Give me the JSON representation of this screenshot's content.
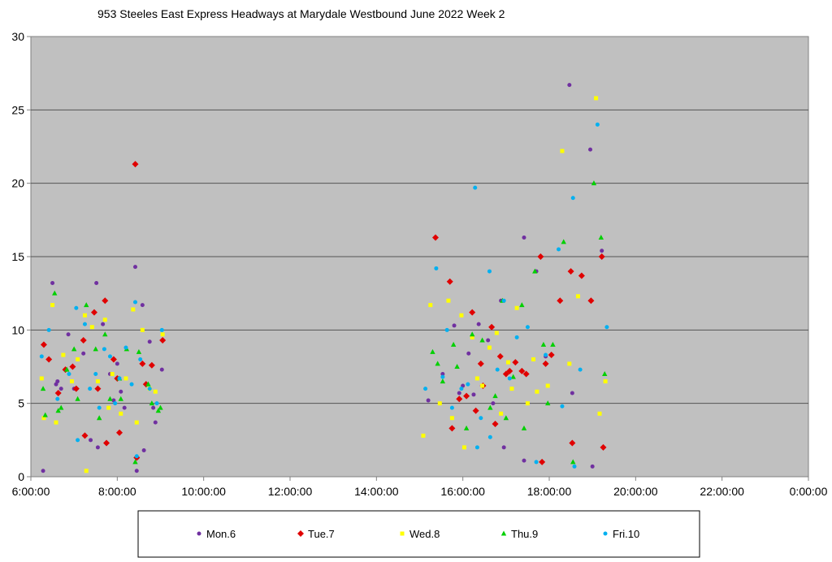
{
  "chart_data": {
    "type": "scatter",
    "title": "953 Steeles East Express Headways at Marydale Westbound June 2022  Week 2",
    "xlabel": "",
    "ylabel": "",
    "xlim": [
      "6:00:00",
      "0:00:00"
    ],
    "ylim": [
      0,
      30
    ],
    "x_ticks": [
      "6:00:00",
      "8:00:00",
      "10:00:00",
      "12:00:00",
      "14:00:00",
      "16:00:00",
      "18:00:00",
      "20:00:00",
      "22:00:00",
      "0:00:00"
    ],
    "y_ticks": [
      "0",
      "5",
      "10",
      "15",
      "20",
      "25",
      "30"
    ],
    "grid": "horizontal",
    "legend_position": "bottom",
    "background": "#c0c0c0",
    "series": [
      {
        "name": "Mon.6",
        "color": "#7030a0",
        "marker": "circle",
        "points": [
          [
            "6:17",
            0.4
          ],
          [
            "6:30",
            13.2
          ],
          [
            "6:35",
            6.3
          ],
          [
            "6:37",
            6.5
          ],
          [
            "6:42",
            6.0
          ],
          [
            "6:52",
            9.7
          ],
          [
            "7:00",
            6.0
          ],
          [
            "7:13",
            8.4
          ],
          [
            "7:23",
            2.5
          ],
          [
            "7:31",
            13.2
          ],
          [
            "7:33",
            2.0
          ],
          [
            "7:40",
            10.4
          ],
          [
            "7:50",
            7.0
          ],
          [
            "7:55",
            5.2
          ],
          [
            "8:00",
            7.7
          ],
          [
            "8:05",
            5.8
          ],
          [
            "8:10",
            4.7
          ],
          [
            "8:25",
            14.3
          ],
          [
            "8:27",
            0.4
          ],
          [
            "8:28",
            1.3
          ],
          [
            "8:35",
            11.7
          ],
          [
            "8:37",
            1.8
          ],
          [
            "8:45",
            9.2
          ],
          [
            "8:50",
            4.7
          ],
          [
            "8:53",
            3.7
          ],
          [
            "9:02",
            7.3
          ],
          [
            "15:12",
            5.2
          ],
          [
            "15:32",
            7.0
          ],
          [
            "15:48",
            10.3
          ],
          [
            "15:55",
            5.7
          ],
          [
            "16:00",
            6.2
          ],
          [
            "16:08",
            8.4
          ],
          [
            "16:15",
            5.6
          ],
          [
            "16:22",
            10.4
          ],
          [
            "16:35",
            9.3
          ],
          [
            "16:42",
            5.0
          ],
          [
            "16:53",
            12.0
          ],
          [
            "16:57",
            2.0
          ],
          [
            "17:25",
            16.3
          ],
          [
            "17:25",
            1.1
          ],
          [
            "17:42",
            14.0
          ],
          [
            "17:55",
            8.2
          ],
          [
            "18:28",
            26.7
          ],
          [
            "18:32",
            5.7
          ],
          [
            "18:57",
            22.3
          ],
          [
            "19:00",
            0.7
          ],
          [
            "19:13",
            15.4
          ]
        ]
      },
      {
        "name": "Tue.7",
        "color": "#e00000",
        "marker": "diamond",
        "points": [
          [
            "6:18",
            9.0
          ],
          [
            "6:25",
            8.0
          ],
          [
            "6:38",
            5.7
          ],
          [
            "6:48",
            7.3
          ],
          [
            "6:58",
            7.5
          ],
          [
            "7:03",
            6.0
          ],
          [
            "7:13",
            9.3
          ],
          [
            "7:15",
            2.8
          ],
          [
            "7:28",
            11.2
          ],
          [
            "7:33",
            6.0
          ],
          [
            "7:43",
            12.0
          ],
          [
            "7:45",
            2.3
          ],
          [
            "7:55",
            8.0
          ],
          [
            "8:00",
            6.7
          ],
          [
            "8:03",
            3.0
          ],
          [
            "8:25",
            21.3
          ],
          [
            "8:27",
            1.3
          ],
          [
            "8:35",
            7.7
          ],
          [
            "8:40",
            6.3
          ],
          [
            "8:48",
            7.6
          ],
          [
            "9:03",
            9.3
          ],
          [
            "15:22",
            16.3
          ],
          [
            "15:42",
            13.3
          ],
          [
            "15:45",
            3.3
          ],
          [
            "15:55",
            5.3
          ],
          [
            "16:05",
            5.5
          ],
          [
            "16:13",
            11.2
          ],
          [
            "16:18",
            4.5
          ],
          [
            "16:25",
            7.7
          ],
          [
            "16:28",
            6.2
          ],
          [
            "16:40",
            10.2
          ],
          [
            "16:45",
            3.6
          ],
          [
            "16:52",
            8.2
          ],
          [
            "17:00",
            7.0
          ],
          [
            "17:05",
            7.2
          ],
          [
            "17:13",
            7.8
          ],
          [
            "17:22",
            7.2
          ],
          [
            "17:28",
            7.0
          ],
          [
            "17:48",
            15.0
          ],
          [
            "17:50",
            1.0
          ],
          [
            "17:55",
            7.7
          ],
          [
            "18:03",
            8.3
          ],
          [
            "18:15",
            12.0
          ],
          [
            "18:30",
            14.0
          ],
          [
            "18:32",
            2.3
          ],
          [
            "18:45",
            13.7
          ],
          [
            "18:58",
            12.0
          ],
          [
            "19:13",
            15.0
          ],
          [
            "19:15",
            2.0
          ]
        ]
      },
      {
        "name": "Wed.8",
        "color": "#ffff00",
        "marker": "square",
        "points": [
          [
            "6:15",
            6.7
          ],
          [
            "6:18",
            4.0
          ],
          [
            "6:30",
            11.7
          ],
          [
            "6:35",
            3.7
          ],
          [
            "6:45",
            8.3
          ],
          [
            "6:57",
            6.5
          ],
          [
            "7:05",
            8.0
          ],
          [
            "7:15",
            11.0
          ],
          [
            "7:17",
            0.4
          ],
          [
            "7:25",
            10.2
          ],
          [
            "7:33",
            6.5
          ],
          [
            "7:43",
            10.7
          ],
          [
            "7:48",
            4.7
          ],
          [
            "7:53",
            7.0
          ],
          [
            "8:05",
            4.3
          ],
          [
            "8:12",
            6.7
          ],
          [
            "8:22",
            11.4
          ],
          [
            "8:27",
            3.7
          ],
          [
            "8:35",
            10.0
          ],
          [
            "8:45",
            6.0
          ],
          [
            "8:53",
            5.8
          ],
          [
            "9:03",
            9.7
          ],
          [
            "15:05",
            2.8
          ],
          [
            "15:15",
            11.7
          ],
          [
            "15:28",
            5.0
          ],
          [
            "15:40",
            12.0
          ],
          [
            "15:45",
            4.0
          ],
          [
            "15:58",
            11.0
          ],
          [
            "16:02",
            2.0
          ],
          [
            "16:13",
            9.5
          ],
          [
            "16:20",
            6.7
          ],
          [
            "16:27",
            6.2
          ],
          [
            "16:37",
            8.8
          ],
          [
            "16:47",
            9.8
          ],
          [
            "16:53",
            4.3
          ],
          [
            "17:03",
            7.8
          ],
          [
            "17:08",
            6.0
          ],
          [
            "17:15",
            11.5
          ],
          [
            "17:30",
            5.0
          ],
          [
            "17:38",
            8.0
          ],
          [
            "17:43",
            5.8
          ],
          [
            "17:58",
            6.2
          ],
          [
            "18:18",
            22.2
          ],
          [
            "18:28",
            7.7
          ],
          [
            "18:40",
            12.3
          ],
          [
            "19:05",
            25.8
          ],
          [
            "19:10",
            4.3
          ],
          [
            "19:18",
            6.5
          ]
        ]
      },
      {
        "name": "Thu.9",
        "color": "#00d000",
        "marker": "triangle",
        "points": [
          [
            "6:17",
            6.0
          ],
          [
            "6:20",
            4.2
          ],
          [
            "6:33",
            12.5
          ],
          [
            "6:38",
            4.5
          ],
          [
            "6:42",
            4.7
          ],
          [
            "6:50",
            7.3
          ],
          [
            "7:00",
            8.7
          ],
          [
            "7:05",
            5.3
          ],
          [
            "7:17",
            11.7
          ],
          [
            "7:30",
            8.7
          ],
          [
            "7:35",
            4.0
          ],
          [
            "7:43",
            9.7
          ],
          [
            "7:50",
            5.3
          ],
          [
            "8:03",
            6.7
          ],
          [
            "8:05",
            5.3
          ],
          [
            "8:13",
            8.7
          ],
          [
            "8:25",
            1.0
          ],
          [
            "8:30",
            8.5
          ],
          [
            "8:43",
            6.3
          ],
          [
            "8:48",
            5.0
          ],
          [
            "8:57",
            4.5
          ],
          [
            "9:00",
            4.7
          ],
          [
            "15:18",
            8.5
          ],
          [
            "15:25",
            7.7
          ],
          [
            "15:32",
            6.5
          ],
          [
            "15:47",
            9.0
          ],
          [
            "15:52",
            7.5
          ],
          [
            "16:05",
            3.3
          ],
          [
            "16:13",
            9.7
          ],
          [
            "16:27",
            9.3
          ],
          [
            "16:38",
            4.7
          ],
          [
            "16:45",
            5.5
          ],
          [
            "16:55",
            12.0
          ],
          [
            "17:00",
            4.0
          ],
          [
            "17:10",
            6.8
          ],
          [
            "17:22",
            11.7
          ],
          [
            "17:25",
            3.3
          ],
          [
            "17:40",
            14.0
          ],
          [
            "17:52",
            9.0
          ],
          [
            "17:58",
            5.0
          ],
          [
            "18:05",
            9.0
          ],
          [
            "18:20",
            16.0
          ],
          [
            "18:33",
            1.0
          ],
          [
            "19:02",
            20.0
          ],
          [
            "19:12",
            16.3
          ],
          [
            "19:17",
            7.0
          ]
        ]
      },
      {
        "name": "Fri.10",
        "color": "#00b0f0",
        "marker": "circle",
        "points": [
          [
            "6:15",
            8.2
          ],
          [
            "6:25",
            10.0
          ],
          [
            "6:37",
            5.3
          ],
          [
            "6:53",
            7.0
          ],
          [
            "7:03",
            11.5
          ],
          [
            "7:05",
            2.5
          ],
          [
            "7:15",
            10.4
          ],
          [
            "7:22",
            6.0
          ],
          [
            "7:30",
            7.0
          ],
          [
            "7:35",
            4.7
          ],
          [
            "7:42",
            8.7
          ],
          [
            "7:50",
            8.2
          ],
          [
            "7:57",
            5.0
          ],
          [
            "8:03",
            6.7
          ],
          [
            "8:12",
            8.8
          ],
          [
            "8:20",
            6.3
          ],
          [
            "8:25",
            11.9
          ],
          [
            "8:27",
            1.4
          ],
          [
            "8:32",
            8.0
          ],
          [
            "8:45",
            6.0
          ],
          [
            "8:55",
            5.0
          ],
          [
            "9:02",
            10.0
          ],
          [
            "15:08",
            6.0
          ],
          [
            "15:23",
            14.2
          ],
          [
            "15:32",
            6.8
          ],
          [
            "15:38",
            10.0
          ],
          [
            "15:45",
            4.7
          ],
          [
            "15:58",
            6.0
          ],
          [
            "16:07",
            6.3
          ],
          [
            "16:17",
            19.7
          ],
          [
            "16:20",
            2.0
          ],
          [
            "16:25",
            4.0
          ],
          [
            "16:37",
            14.0
          ],
          [
            "16:38",
            2.7
          ],
          [
            "16:48",
            7.3
          ],
          [
            "16:57",
            12.0
          ],
          [
            "17:05",
            6.7
          ],
          [
            "17:15",
            9.5
          ],
          [
            "17:30",
            10.2
          ],
          [
            "17:42",
            1.0
          ],
          [
            "17:55",
            8.3
          ],
          [
            "18:13",
            15.5
          ],
          [
            "18:18",
            4.8
          ],
          [
            "18:33",
            19.0
          ],
          [
            "18:35",
            0.7
          ],
          [
            "18:43",
            7.3
          ],
          [
            "19:07",
            24.0
          ],
          [
            "19:20",
            10.2
          ]
        ]
      }
    ]
  }
}
